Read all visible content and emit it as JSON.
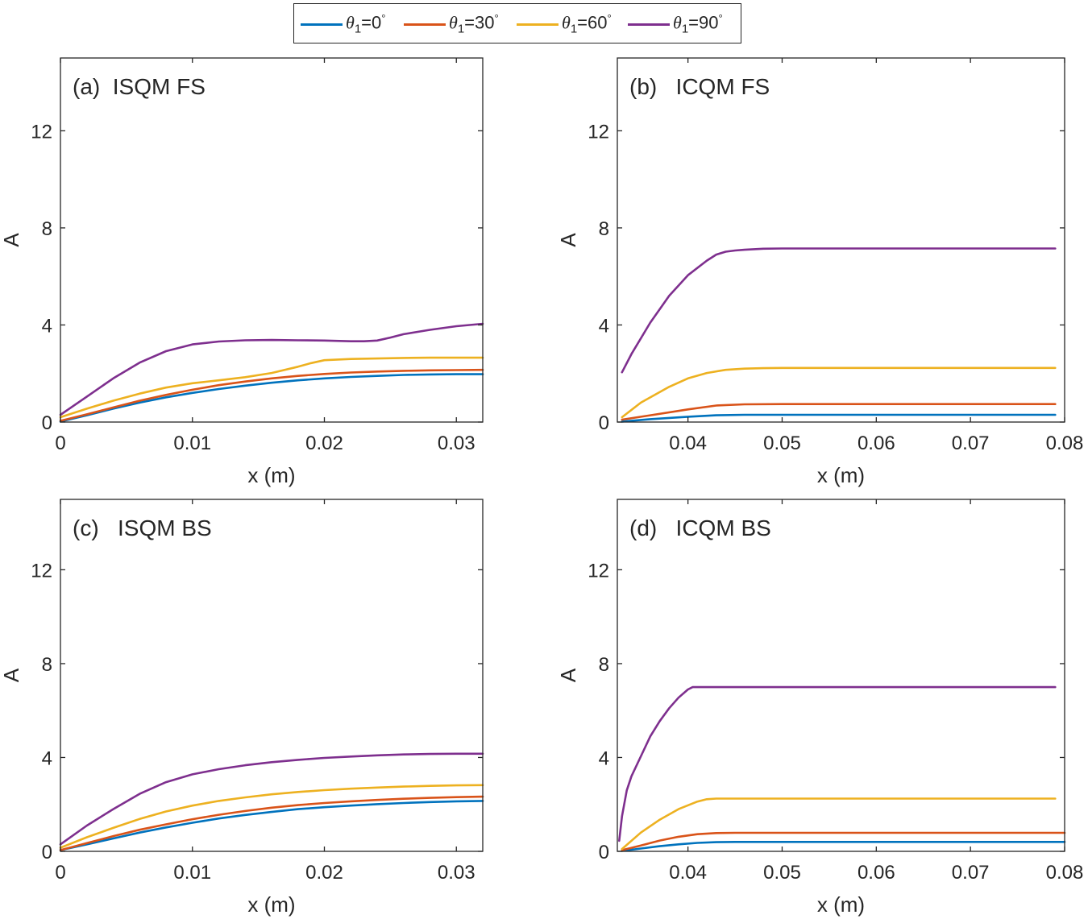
{
  "legend": {
    "items": [
      {
        "symbol": "θ",
        "sub": "1",
        "eq": "=0",
        "deg": "°",
        "color": "#0072BD"
      },
      {
        "symbol": "θ",
        "sub": "1",
        "eq": "=30",
        "deg": "°",
        "color": "#D95319"
      },
      {
        "symbol": "θ",
        "sub": "1",
        "eq": "=60",
        "deg": "°",
        "color": "#EDB120"
      },
      {
        "symbol": "θ",
        "sub": "1",
        "eq": "=90",
        "deg": "°",
        "color": "#7E2F8E"
      }
    ]
  },
  "chart_data": [
    {
      "type": "line",
      "title": "(a)  ISQM FS",
      "xlabel": "x (m)",
      "ylabel": "A",
      "xlim": [
        0,
        0.032
      ],
      "ylim": [
        0,
        15
      ],
      "xticks": [
        0,
        0.01,
        0.02,
        0.03
      ],
      "xticklabels": [
        "0",
        "0.01",
        "0.02",
        "0.03"
      ],
      "yticks": [
        0,
        4,
        8,
        12
      ],
      "yticklabels": [
        "0",
        "4",
        "8",
        "12"
      ],
      "series": [
        {
          "legend": "θ1=0°",
          "color": "#0072BD",
          "x": [
            0,
            0.002,
            0.004,
            0.006,
            0.008,
            0.01,
            0.012,
            0.014,
            0.016,
            0.018,
            0.02,
            0.022,
            0.024,
            0.026,
            0.028,
            0.03,
            0.032
          ],
          "y": [
            0.02,
            0.28,
            0.55,
            0.8,
            1.02,
            1.2,
            1.36,
            1.5,
            1.62,
            1.72,
            1.8,
            1.86,
            1.9,
            1.94,
            1.96,
            1.97,
            1.97
          ]
        },
        {
          "legend": "θ1=30°",
          "color": "#D95319",
          "x": [
            0,
            0.002,
            0.004,
            0.006,
            0.008,
            0.01,
            0.012,
            0.014,
            0.016,
            0.018,
            0.02,
            0.022,
            0.024,
            0.026,
            0.028,
            0.03,
            0.032
          ],
          "y": [
            0.05,
            0.32,
            0.6,
            0.88,
            1.12,
            1.33,
            1.52,
            1.67,
            1.8,
            1.9,
            1.98,
            2.04,
            2.08,
            2.11,
            2.13,
            2.14,
            2.15
          ]
        },
        {
          "legend": "θ1=60°",
          "color": "#EDB120",
          "x": [
            0,
            0.002,
            0.004,
            0.006,
            0.008,
            0.01,
            0.012,
            0.014,
            0.016,
            0.018,
            0.019,
            0.02,
            0.022,
            0.024,
            0.026,
            0.028,
            0.03,
            0.032
          ],
          "y": [
            0.2,
            0.55,
            0.88,
            1.17,
            1.42,
            1.6,
            1.72,
            1.85,
            2.02,
            2.28,
            2.43,
            2.55,
            2.6,
            2.62,
            2.64,
            2.65,
            2.65,
            2.65
          ]
        },
        {
          "legend": "θ1=90°",
          "color": "#7E2F8E",
          "x": [
            0,
            0.002,
            0.004,
            0.006,
            0.008,
            0.01,
            0.012,
            0.014,
            0.016,
            0.018,
            0.02,
            0.022,
            0.023,
            0.024,
            0.025,
            0.026,
            0.028,
            0.03,
            0.032
          ],
          "y": [
            0.3,
            1.05,
            1.8,
            2.45,
            2.92,
            3.2,
            3.32,
            3.37,
            3.38,
            3.37,
            3.36,
            3.33,
            3.33,
            3.36,
            3.48,
            3.62,
            3.8,
            3.95,
            4.05
          ]
        }
      ]
    },
    {
      "type": "line",
      "title": "(b)   ICQM FS",
      "xlabel": "x (m)",
      "ylabel": "A",
      "xlim": [
        0.0325,
        0.08
      ],
      "ylim": [
        0,
        15
      ],
      "xticks": [
        0.04,
        0.05,
        0.06,
        0.07,
        0.08
      ],
      "xticklabels": [
        "0.04",
        "0.05",
        "0.06",
        "0.07",
        "0.08"
      ],
      "yticks": [
        0,
        4,
        8,
        12
      ],
      "yticklabels": [
        "0",
        "4",
        "8",
        "12"
      ],
      "series": [
        {
          "legend": "θ1=0°",
          "color": "#0072BD",
          "x": [
            0.033,
            0.036,
            0.04,
            0.043,
            0.046,
            0.05,
            0.079
          ],
          "y": [
            0.02,
            0.12,
            0.22,
            0.28,
            0.3,
            0.3,
            0.3
          ]
        },
        {
          "legend": "θ1=30°",
          "color": "#D95319",
          "x": [
            0.033,
            0.036,
            0.04,
            0.043,
            0.046,
            0.05,
            0.079
          ],
          "y": [
            0.1,
            0.28,
            0.52,
            0.68,
            0.73,
            0.74,
            0.74
          ]
        },
        {
          "legend": "θ1=60°",
          "color": "#EDB120",
          "x": [
            0.033,
            0.035,
            0.038,
            0.04,
            0.042,
            0.044,
            0.046,
            0.048,
            0.05,
            0.079
          ],
          "y": [
            0.2,
            0.8,
            1.45,
            1.8,
            2.02,
            2.15,
            2.2,
            2.22,
            2.23,
            2.23
          ]
        },
        {
          "legend": "θ1=90°",
          "color": "#7E2F8E",
          "x": [
            0.033,
            0.034,
            0.036,
            0.038,
            0.04,
            0.042,
            0.043,
            0.044,
            0.045,
            0.046,
            0.048,
            0.05,
            0.079
          ],
          "y": [
            2.05,
            2.8,
            4.1,
            5.2,
            6.05,
            6.65,
            6.9,
            7.02,
            7.07,
            7.1,
            7.14,
            7.15,
            7.15
          ]
        }
      ]
    },
    {
      "type": "line",
      "title": "(c)   ISQM BS",
      "xlabel": "x (m)",
      "ylabel": "A",
      "xlim": [
        0,
        0.032
      ],
      "ylim": [
        0,
        15
      ],
      "xticks": [
        0,
        0.01,
        0.02,
        0.03
      ],
      "xticklabels": [
        "0",
        "0.01",
        "0.02",
        "0.03"
      ],
      "yticks": [
        0,
        4,
        8,
        12
      ],
      "yticklabels": [
        "0",
        "4",
        "8",
        "12"
      ],
      "series": [
        {
          "legend": "θ1=0°",
          "color": "#0072BD",
          "x": [
            0,
            0.002,
            0.004,
            0.006,
            0.008,
            0.01,
            0.012,
            0.014,
            0.016,
            0.018,
            0.02,
            0.022,
            0.024,
            0.026,
            0.028,
            0.03,
            0.032
          ],
          "y": [
            0.05,
            0.3,
            0.55,
            0.8,
            1.02,
            1.22,
            1.4,
            1.55,
            1.68,
            1.8,
            1.88,
            1.95,
            2.01,
            2.06,
            2.1,
            2.13,
            2.15
          ]
        },
        {
          "legend": "θ1=30°",
          "color": "#D95319",
          "x": [
            0,
            0.002,
            0.004,
            0.006,
            0.008,
            0.01,
            0.012,
            0.014,
            0.016,
            0.018,
            0.02,
            0.022,
            0.024,
            0.026,
            0.028,
            0.03,
            0.032
          ],
          "y": [
            0.05,
            0.35,
            0.65,
            0.92,
            1.15,
            1.37,
            1.56,
            1.72,
            1.86,
            1.97,
            2.06,
            2.13,
            2.19,
            2.24,
            2.28,
            2.31,
            2.33
          ]
        },
        {
          "legend": "θ1=60°",
          "color": "#EDB120",
          "x": [
            0,
            0.002,
            0.004,
            0.006,
            0.008,
            0.01,
            0.012,
            0.014,
            0.016,
            0.018,
            0.02,
            0.022,
            0.024,
            0.026,
            0.028,
            0.03,
            0.032
          ],
          "y": [
            0.15,
            0.6,
            1.0,
            1.38,
            1.7,
            1.95,
            2.15,
            2.3,
            2.43,
            2.53,
            2.61,
            2.67,
            2.72,
            2.76,
            2.79,
            2.81,
            2.82
          ]
        },
        {
          "legend": "θ1=90°",
          "color": "#7E2F8E",
          "x": [
            0,
            0.002,
            0.004,
            0.006,
            0.008,
            0.01,
            0.012,
            0.014,
            0.016,
            0.018,
            0.02,
            0.022,
            0.024,
            0.026,
            0.028,
            0.03,
            0.032
          ],
          "y": [
            0.3,
            1.1,
            1.8,
            2.45,
            2.95,
            3.28,
            3.5,
            3.67,
            3.8,
            3.9,
            3.98,
            4.04,
            4.09,
            4.13,
            4.15,
            4.16,
            4.16
          ]
        }
      ]
    },
    {
      "type": "line",
      "title": "(d)   ICQM BS",
      "xlabel": "x (m)",
      "ylabel": "A",
      "xlim": [
        0.0325,
        0.08
      ],
      "ylim": [
        0,
        15
      ],
      "xticks": [
        0.04,
        0.05,
        0.06,
        0.07,
        0.08
      ],
      "xticklabels": [
        "0.04",
        "0.05",
        "0.06",
        "0.07",
        "0.08"
      ],
      "yticks": [
        0,
        4,
        8,
        12
      ],
      "yticklabels": [
        "0",
        "4",
        "8",
        "12"
      ],
      "series": [
        {
          "legend": "θ1=0°",
          "color": "#0072BD",
          "x": [
            0.033,
            0.035,
            0.037,
            0.039,
            0.041,
            0.043,
            0.045,
            0.05,
            0.08
          ],
          "y": [
            0.02,
            0.12,
            0.22,
            0.3,
            0.36,
            0.39,
            0.4,
            0.4,
            0.4
          ]
        },
        {
          "legend": "θ1=30°",
          "color": "#D95319",
          "x": [
            0.033,
            0.035,
            0.037,
            0.039,
            0.041,
            0.043,
            0.045,
            0.05,
            0.08
          ],
          "y": [
            0.05,
            0.25,
            0.46,
            0.62,
            0.73,
            0.78,
            0.79,
            0.79,
            0.79
          ]
        },
        {
          "legend": "θ1=60°",
          "color": "#EDB120",
          "x": [
            0.033,
            0.035,
            0.037,
            0.039,
            0.041,
            0.042,
            0.043,
            0.045,
            0.05,
            0.079
          ],
          "y": [
            0.1,
            0.8,
            1.35,
            1.8,
            2.12,
            2.22,
            2.25,
            2.25,
            2.25,
            2.25
          ]
        },
        {
          "legend": "θ1=90°",
          "color": "#7E2F8E",
          "x": [
            0.0327,
            0.033,
            0.0335,
            0.034,
            0.035,
            0.036,
            0.037,
            0.038,
            0.039,
            0.04,
            0.0405,
            0.045,
            0.05,
            0.079
          ],
          "y": [
            0.45,
            1.5,
            2.6,
            3.2,
            4.05,
            4.9,
            5.55,
            6.1,
            6.55,
            6.9,
            7.0,
            7.0,
            7.0,
            7.0
          ]
        }
      ]
    }
  ]
}
